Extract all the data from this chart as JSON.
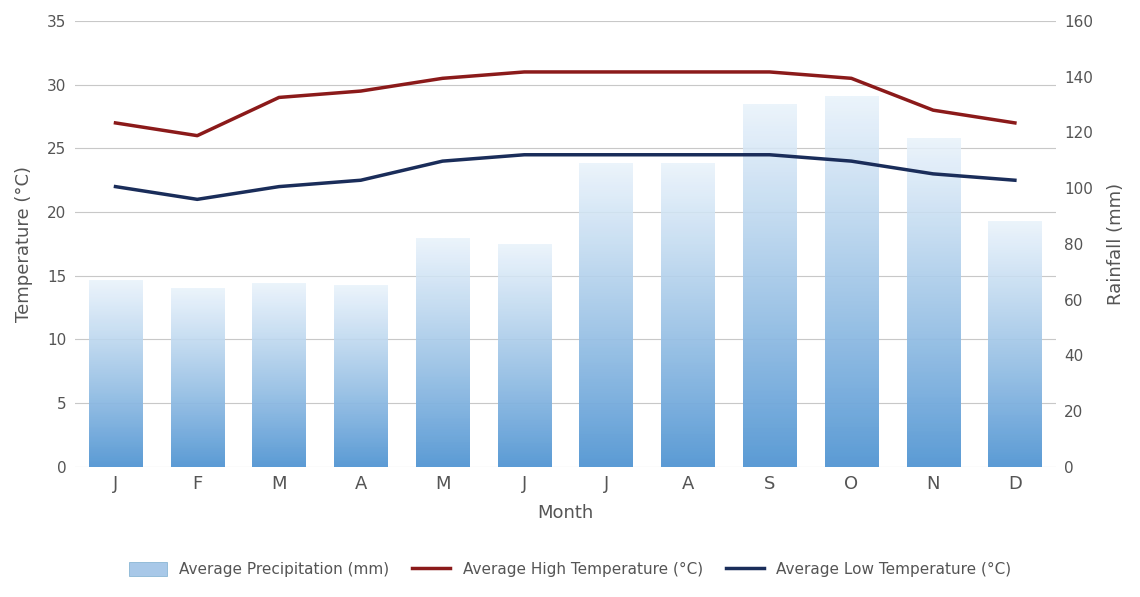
{
  "months": [
    "J",
    "F",
    "M",
    "A",
    "M",
    "J",
    "J",
    "A",
    "S",
    "O",
    "N",
    "D"
  ],
  "precipitation_mm": [
    67,
    64,
    66,
    65,
    82,
    80,
    109,
    109,
    130,
    133,
    118,
    88
  ],
  "high_temp": [
    27,
    26,
    29,
    29.5,
    30.5,
    31,
    31,
    31,
    31,
    30.5,
    28,
    27
  ],
  "low_temp": [
    22,
    21,
    22,
    22.5,
    24,
    24.5,
    24.5,
    24.5,
    24.5,
    24,
    23,
    22.5
  ],
  "bar_color_bottom": "#5b9bd5",
  "bar_color_top": "#e8f2fb",
  "high_temp_color": "#8b1a1a",
  "low_temp_color": "#1a2d5a",
  "background_color": "#ffffff",
  "plot_bg_color": "#ffffff",
  "grid_color": "#c8c8c8",
  "temp_ylabel": "Temperature (°C)",
  "rain_ylabel": "Rainfall (mm)",
  "xlabel": "Month",
  "ylim_temp": [
    0,
    35
  ],
  "ylim_rain": [
    0,
    160
  ],
  "yticks_temp": [
    0,
    5,
    10,
    15,
    20,
    25,
    30,
    35
  ],
  "yticks_rain": [
    0,
    20,
    40,
    60,
    80,
    100,
    120,
    140,
    160
  ],
  "legend_precip": "Average Precipitation (mm)",
  "legend_high": "Average High Temperature (°C)",
  "legend_low": "Average Low Temperature (°C)",
  "axis_label_fontsize": 13,
  "tick_fontsize": 11,
  "legend_fontsize": 11,
  "line_width": 2.5,
  "bar_width": 0.65
}
